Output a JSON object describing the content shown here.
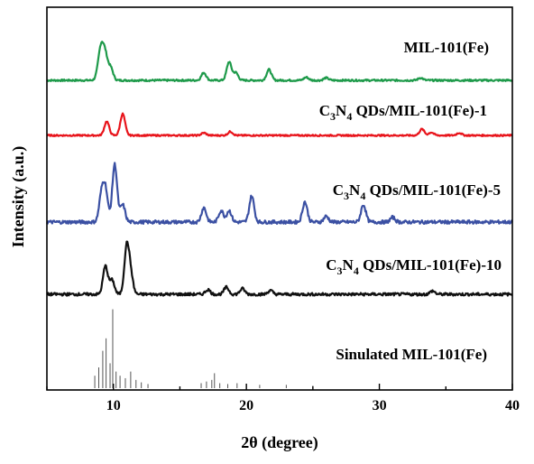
{
  "chart_data": {
    "type": "line",
    "xlabel": "2θ (degree)",
    "ylabel": "Intensity (a.u.)",
    "xlim": [
      5,
      40
    ],
    "xticks": [
      10,
      20,
      30,
      40
    ],
    "grid": false,
    "legend": "none",
    "series": [
      {
        "name": "MIL-101(Fe)",
        "color": "#1e9a4a",
        "peaks": [
          [
            8.9,
            0.3
          ],
          [
            9.1,
            0.9
          ],
          [
            9.4,
            0.75
          ],
          [
            9.8,
            0.4
          ],
          [
            16.8,
            0.25
          ],
          [
            18.7,
            0.6
          ],
          [
            19.2,
            0.25
          ],
          [
            21.7,
            0.35
          ],
          [
            24.5,
            0.1
          ],
          [
            26.0,
            0.08
          ],
          [
            33.1,
            0.08
          ]
        ]
      },
      {
        "name": "C3N4 QDs/MIL-101(Fe)-1",
        "color": "#e8141b",
        "peaks": [
          [
            9.5,
            0.55
          ],
          [
            10.7,
            0.85
          ],
          [
            16.8,
            0.1
          ],
          [
            18.8,
            0.15
          ],
          [
            33.2,
            0.25
          ],
          [
            33.9,
            0.12
          ],
          [
            36.0,
            0.1
          ]
        ]
      },
      {
        "name": "C3N4 QDs/MIL-101(Fe)-5",
        "color": "#3b50a3",
        "peaks": [
          [
            9.1,
            0.45
          ],
          [
            9.4,
            0.55
          ],
          [
            10.1,
            1.0
          ],
          [
            10.7,
            0.3
          ],
          [
            16.8,
            0.25
          ],
          [
            18.1,
            0.2
          ],
          [
            18.7,
            0.2
          ],
          [
            20.4,
            0.45
          ],
          [
            24.4,
            0.35
          ],
          [
            26.0,
            0.1
          ],
          [
            28.8,
            0.3
          ],
          [
            31.0,
            0.08
          ]
        ]
      },
      {
        "name": "C3N4 QDs/MIL-101(Fe)-10",
        "color": "#111111",
        "peaks": [
          [
            9.4,
            0.6
          ],
          [
            9.9,
            0.3
          ],
          [
            11.0,
            1.0
          ],
          [
            11.3,
            0.4
          ],
          [
            17.1,
            0.1
          ],
          [
            18.5,
            0.15
          ],
          [
            19.7,
            0.12
          ],
          [
            21.8,
            0.08
          ],
          [
            34.0,
            0.07
          ]
        ]
      },
      {
        "name": "Sinulated MIL-101(Fe)",
        "color": "#555555",
        "sticks": [
          [
            8.6,
            0.15
          ],
          [
            8.9,
            0.25
          ],
          [
            9.2,
            0.45
          ],
          [
            9.45,
            0.6
          ],
          [
            9.75,
            0.3
          ],
          [
            9.95,
            0.95
          ],
          [
            10.2,
            0.2
          ],
          [
            10.5,
            0.15
          ],
          [
            10.9,
            0.12
          ],
          [
            11.3,
            0.2
          ],
          [
            11.7,
            0.1
          ],
          [
            12.1,
            0.07
          ],
          [
            12.6,
            0.05
          ],
          [
            16.6,
            0.06
          ],
          [
            17.0,
            0.08
          ],
          [
            17.4,
            0.1
          ],
          [
            17.6,
            0.18
          ],
          [
            18.0,
            0.06
          ],
          [
            18.6,
            0.05
          ],
          [
            19.3,
            0.06
          ],
          [
            20.0,
            0.05
          ],
          [
            21.0,
            0.04
          ],
          [
            23.0,
            0.04
          ],
          [
            25.0,
            0.03
          ]
        ]
      }
    ]
  },
  "labels": {
    "xlabel": "2θ (degree)",
    "ylabel": "Intensity (a.u.)",
    "series_1": "MIL-101(Fe)",
    "series_2_pre": "C",
    "series_2_sub1": "3",
    "series_2_mid": "N",
    "series_2_sub2": "4",
    "series_2_post": " QDs/MIL-101(Fe)-1",
    "series_3_post": " QDs/MIL-101(Fe)-5",
    "series_4_post": " QDs/MIL-101(Fe)-10",
    "series_5": "Sinulated MIL-101(Fe)"
  }
}
